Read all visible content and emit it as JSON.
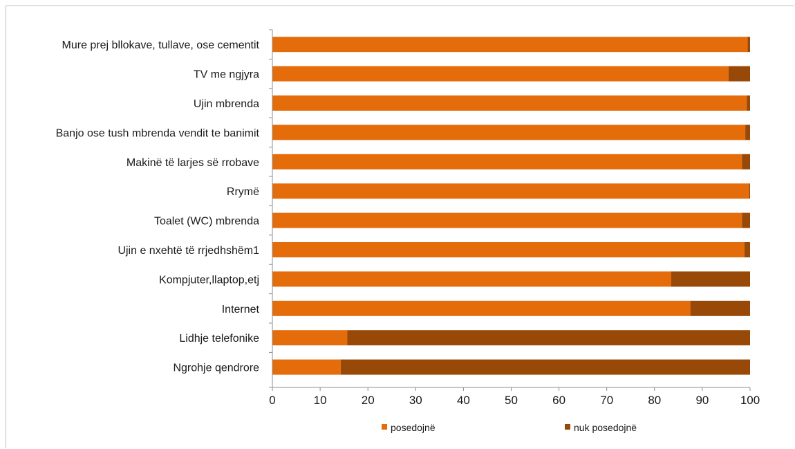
{
  "chart_data": {
    "type": "bar",
    "orientation": "horizontal",
    "stacked": true,
    "categories": [
      "Mure prej bllokave, tullave, ose cementit",
      "TV me ngjyra",
      "Ujin mbrenda",
      "Banjo ose tush mbrenda vendit te banimit",
      "Makinë të larjes së rrobave",
      "Rrymë",
      "Toalet (WC) mbrenda",
      "Ujin e nxehtë të rrjedhshëm1",
      "Kompjuter,llaptop,etj",
      "Internet",
      "Lidhje telefonike",
      "Ngrohje qendrore"
    ],
    "series": [
      {
        "name": "posedojnë",
        "color": "#e46c0a",
        "values": [
          99.5,
          95.5,
          99.3,
          99.0,
          98.3,
          99.8,
          98.3,
          98.8,
          83.5,
          87.5,
          15.7,
          14.3
        ]
      },
      {
        "name": "nuk posedojnë",
        "color": "#984807",
        "values": [
          0.5,
          4.5,
          0.7,
          1.0,
          1.7,
          0.2,
          1.7,
          1.2,
          16.5,
          12.5,
          84.3,
          85.7
        ]
      }
    ],
    "xlim": [
      0,
      100
    ],
    "xticks": [
      "0",
      "10",
      "20",
      "30",
      "40",
      "50",
      "60",
      "70",
      "80",
      "90",
      "100"
    ],
    "grid": false,
    "legend": "bottom"
  }
}
